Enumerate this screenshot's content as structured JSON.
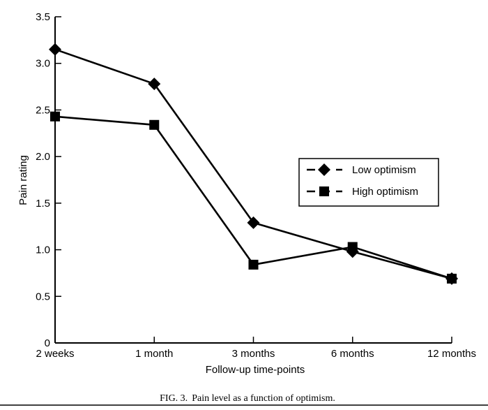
{
  "chart_data": {
    "type": "line",
    "title": "",
    "xlabel": "Follow-up time-points",
    "ylabel": "Pain rating",
    "categories": [
      "2 weeks",
      "1 month",
      "3 months",
      "6 months",
      "12 months"
    ],
    "ylim": [
      0,
      3.5
    ],
    "yticks": [
      "0",
      "0.5",
      "1.0",
      "1.5",
      "2.0",
      "2.5",
      "3.0",
      "3.5"
    ],
    "ytick_values": [
      0,
      0.5,
      1.0,
      1.5,
      2.0,
      2.5,
      3.0,
      3.5
    ],
    "grid": false,
    "legend_position": "right",
    "series": [
      {
        "name": "Low optimism",
        "marker": "diamond",
        "color": "#000000",
        "values": [
          3.15,
          2.78,
          1.29,
          0.98,
          0.69
        ]
      },
      {
        "name": "High optimism",
        "marker": "square",
        "color": "#000000",
        "values": [
          2.43,
          2.34,
          0.84,
          1.03,
          0.69
        ]
      }
    ]
  },
  "caption": {
    "label": "FIG. 3.",
    "text": "Pain level as a function of optimism."
  }
}
